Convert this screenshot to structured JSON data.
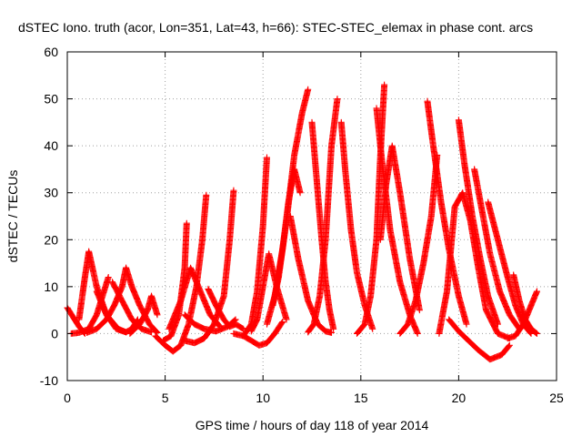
{
  "chart_data": {
    "type": "scatter",
    "title": "dSTEC Iono. truth (acor, Lon=351, Lat=43, h=66): STEC-STEC_elemax in phase cont. arcs",
    "xlabel": "GPS time / hours of day 118 of year 2014",
    "ylabel": "dSTEC  / TECUs",
    "xlim": [
      0,
      25
    ],
    "ylim": [
      -10,
      60
    ],
    "xticks": [
      0,
      5,
      10,
      15,
      20,
      25
    ],
    "yticks": [
      -10,
      0,
      10,
      20,
      30,
      40,
      50,
      60
    ],
    "grid": true,
    "marker": "+",
    "color": "#ff0000",
    "series": [
      {
        "x": [
          0.0,
          0.3,
          0.6,
          0.9
        ],
        "y": [
          5.5,
          3.5,
          1.5,
          0.0
        ]
      },
      {
        "x": [
          0.2,
          0.6,
          1.1,
          1.5,
          1.8,
          2.1
        ],
        "y": [
          0.0,
          0.2,
          1.0,
          4.0,
          8.0,
          12.0
        ]
      },
      {
        "x": [
          0.6,
          0.9,
          1.1,
          1.5,
          2.0,
          2.6,
          3.0
        ],
        "y": [
          3.0,
          12.0,
          17.5,
          10.0,
          4.0,
          1.0,
          0.3
        ]
      },
      {
        "x": [
          1.0,
          1.5,
          2.0,
          2.4,
          2.8,
          3.0
        ],
        "y": [
          0.2,
          1.0,
          3.0,
          6.0,
          10.0,
          14.0
        ]
      },
      {
        "x": [
          1.5,
          2.0,
          2.5,
          3.0,
          3.3,
          3.6
        ],
        "y": [
          9.0,
          4.0,
          1.0,
          0.3,
          1.0,
          3.0
        ]
      },
      {
        "x": [
          2.3,
          2.8,
          3.3,
          3.8,
          4.3
        ],
        "y": [
          11.0,
          7.0,
          3.0,
          1.0,
          0.3
        ]
      },
      {
        "x": [
          3.0,
          3.3,
          3.7,
          4.2,
          4.6
        ],
        "y": [
          14.0,
          10.0,
          6.0,
          2.0,
          0.2
        ]
      },
      {
        "x": [
          3.2,
          3.7,
          4.1,
          4.3,
          4.6
        ],
        "y": [
          0.0,
          2.0,
          5.0,
          8.0,
          4.0
        ]
      },
      {
        "x": [
          4.5,
          5.0,
          5.4,
          5.8,
          6.2,
          6.6,
          6.9,
          7.1
        ],
        "y": [
          -0.5,
          -2.5,
          -3.8,
          -2.5,
          2.0,
          10.0,
          20.0,
          29.5
        ]
      },
      {
        "x": [
          4.9,
          5.3,
          5.7,
          6.0,
          6.1
        ],
        "y": [
          -1.5,
          -0.5,
          4.0,
          14.0,
          23.5
        ]
      },
      {
        "x": [
          5.2,
          5.8,
          6.3,
          6.8,
          7.3,
          7.8
        ],
        "y": [
          1.0,
          7.0,
          14.0,
          9.0,
          4.0,
          1.5
        ]
      },
      {
        "x": [
          6.0,
          6.5,
          7.0,
          7.5,
          8.0,
          8.3,
          8.5
        ],
        "y": [
          -1.5,
          -2.0,
          -1.0,
          2.0,
          8.0,
          20.0,
          30.5
        ]
      },
      {
        "x": [
          6.0,
          6.5,
          7.0,
          7.6,
          8.2,
          8.6
        ],
        "y": [
          4.0,
          2.0,
          1.0,
          0.5,
          1.5,
          3.0
        ]
      },
      {
        "x": [
          7.2,
          7.6,
          8.0,
          8.3,
          8.6,
          9.0
        ],
        "y": [
          9.5,
          6.0,
          3.0,
          1.5,
          2.0,
          1.0
        ]
      },
      {
        "x": [
          8.5,
          9.0,
          9.4,
          9.7,
          10.0,
          10.2
        ],
        "y": [
          0.0,
          -0.5,
          2.0,
          9.0,
          23.0,
          37.5
        ]
      },
      {
        "x": [
          9.0,
          9.4,
          9.8,
          10.2,
          10.6,
          11.0
        ],
        "y": [
          -0.5,
          -1.5,
          -2.5,
          -2.0,
          0.0,
          2.5
        ]
      },
      {
        "x": [
          9.4,
          9.7,
          10.0,
          10.3,
          10.7,
          11.2
        ],
        "y": [
          0.5,
          3.0,
          10.0,
          17.0,
          10.0,
          3.0
        ]
      },
      {
        "x": [
          10.2,
          10.6,
          11.0,
          11.3,
          11.6,
          11.9
        ],
        "y": [
          2.0,
          8.0,
          18.0,
          28.0,
          35.0,
          30.0
        ]
      },
      {
        "x": [
          10.5,
          10.8,
          11.2,
          11.6,
          12.0,
          12.3
        ],
        "y": [
          6.0,
          12.0,
          24.0,
          38.0,
          47.0,
          52.0
        ]
      },
      {
        "x": [
          11.4,
          11.8,
          12.3,
          12.8,
          13.2,
          13.5
        ],
        "y": [
          25.0,
          16.0,
          7.0,
          2.0,
          0.5,
          0.2
        ]
      },
      {
        "x": [
          12.3,
          12.6,
          12.9,
          13.2,
          13.5,
          13.8
        ],
        "y": [
          0.3,
          2.0,
          8.0,
          20.0,
          40.0,
          50.0
        ]
      },
      {
        "x": [
          12.5,
          12.7,
          13.0,
          13.2,
          13.4,
          13.6
        ],
        "y": [
          45.0,
          35.0,
          20.0,
          11.0,
          5.0,
          1.0
        ]
      },
      {
        "x": [
          14.0,
          14.2,
          14.5,
          14.8,
          15.2,
          15.6
        ],
        "y": [
          45.0,
          35.0,
          22.0,
          13.0,
          6.0,
          1.0
        ]
      },
      {
        "x": [
          14.8,
          15.2,
          15.5,
          15.8,
          16.0,
          16.2
        ],
        "y": [
          0.0,
          2.0,
          8.0,
          20.0,
          38.0,
          53.0
        ]
      },
      {
        "x": [
          15.8,
          16.1,
          16.5,
          17.0,
          17.5,
          17.9
        ],
        "y": [
          48.0,
          36.0,
          22.0,
          11.0,
          4.0,
          0.0
        ]
      },
      {
        "x": [
          16.0,
          16.3,
          16.6,
          17.0,
          17.5,
          18.0
        ],
        "y": [
          20.0,
          32.0,
          40.0,
          30.0,
          16.0,
          5.0
        ]
      },
      {
        "x": [
          17.0,
          17.4,
          17.8,
          18.2,
          18.6,
          18.9
        ],
        "y": [
          0.0,
          2.0,
          7.0,
          15.0,
          25.0,
          38.0
        ]
      },
      {
        "x": [
          18.4,
          18.7,
          19.1,
          19.5,
          20.0,
          20.4
        ],
        "y": [
          49.5,
          40.0,
          28.0,
          18.0,
          8.0,
          2.0
        ]
      },
      {
        "x": [
          19.0,
          19.4,
          19.8,
          20.2,
          20.6,
          21.0,
          21.4,
          22.0,
          22.6
        ],
        "y": [
          0.0,
          9.0,
          27.0,
          30.0,
          24.0,
          14.0,
          5.0,
          0.0,
          -1.0
        ]
      },
      {
        "x": [
          20.0,
          20.3,
          20.7,
          21.1,
          21.5,
          22.0
        ],
        "y": [
          45.5,
          36.0,
          25.0,
          16.0,
          8.0,
          2.0
        ]
      },
      {
        "x": [
          19.5,
          20.0,
          20.5,
          21.0,
          21.6,
          22.2,
          22.6
        ],
        "y": [
          3.0,
          0.5,
          -1.5,
          -3.5,
          -5.5,
          -4.5,
          -2.5
        ]
      },
      {
        "x": [
          20.8,
          21.2,
          21.6,
          22.1,
          22.6,
          23.1
        ],
        "y": [
          35.0,
          26.0,
          17.0,
          9.0,
          4.0,
          1.0
        ]
      },
      {
        "x": [
          21.5,
          22.0,
          22.5,
          22.9,
          23.3,
          23.7
        ],
        "y": [
          28.0,
          20.0,
          12.0,
          6.0,
          2.0,
          0.0
        ]
      },
      {
        "x": [
          22.8,
          23.1,
          23.4,
          23.7,
          24.0
        ],
        "y": [
          12.5,
          7.0,
          3.0,
          1.0,
          0.0
        ]
      },
      {
        "x": [
          22.5,
          22.9,
          23.3,
          23.6,
          24.0
        ],
        "y": [
          -1.0,
          -0.5,
          2.0,
          5.0,
          9.0
        ]
      }
    ]
  }
}
